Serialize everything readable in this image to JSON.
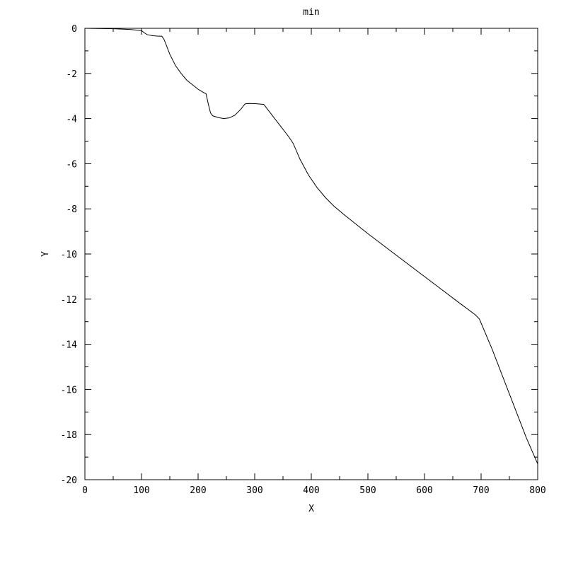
{
  "chart_data": {
    "type": "line",
    "title": "min",
    "xlabel": "X",
    "ylabel": "Y",
    "xlim": [
      0,
      800
    ],
    "ylim": [
      -20,
      0
    ],
    "grid": false,
    "x_ticks": [
      0,
      100,
      200,
      300,
      400,
      500,
      600,
      700,
      800
    ],
    "x_tick_labels": [
      "0",
      "100",
      "200",
      "300",
      "400",
      "500",
      "600",
      "700",
      "800"
    ],
    "y_ticks": [
      0,
      -2,
      -4,
      -6,
      -8,
      -10,
      -12,
      -14,
      -16,
      -18,
      -20
    ],
    "y_tick_labels": [
      "0",
      "-2",
      "-4",
      "-6",
      "-8",
      "-10",
      "-12",
      "-14",
      "-16",
      "-18",
      "-20"
    ],
    "x_minor_step": 50,
    "y_minor_step": 1,
    "series": [
      {
        "color": "#000000",
        "points": [
          [
            0,
            0.0
          ],
          [
            50,
            -0.02
          ],
          [
            80,
            -0.05
          ],
          [
            100,
            -0.1
          ],
          [
            105,
            -0.2
          ],
          [
            110,
            -0.28
          ],
          [
            120,
            -0.33
          ],
          [
            130,
            -0.35
          ],
          [
            136,
            -0.35
          ],
          [
            140,
            -0.5
          ],
          [
            150,
            -1.15
          ],
          [
            160,
            -1.65
          ],
          [
            170,
            -2.0
          ],
          [
            180,
            -2.3
          ],
          [
            190,
            -2.5
          ],
          [
            200,
            -2.7
          ],
          [
            210,
            -2.85
          ],
          [
            214,
            -2.9
          ],
          [
            218,
            -3.35
          ],
          [
            222,
            -3.75
          ],
          [
            226,
            -3.88
          ],
          [
            235,
            -3.95
          ],
          [
            245,
            -4.0
          ],
          [
            255,
            -3.97
          ],
          [
            265,
            -3.85
          ],
          [
            275,
            -3.6
          ],
          [
            283,
            -3.35
          ],
          [
            290,
            -3.33
          ],
          [
            300,
            -3.34
          ],
          [
            316,
            -3.37
          ],
          [
            320,
            -3.5
          ],
          [
            340,
            -4.15
          ],
          [
            360,
            -4.8
          ],
          [
            368,
            -5.1
          ],
          [
            380,
            -5.8
          ],
          [
            395,
            -6.5
          ],
          [
            410,
            -7.05
          ],
          [
            425,
            -7.5
          ],
          [
            440,
            -7.88
          ],
          [
            460,
            -8.3
          ],
          [
            480,
            -8.7
          ],
          [
            500,
            -9.1
          ],
          [
            550,
            -10.05
          ],
          [
            600,
            -11.0
          ],
          [
            650,
            -11.95
          ],
          [
            690,
            -12.7
          ],
          [
            697,
            -12.88
          ],
          [
            720,
            -14.25
          ],
          [
            750,
            -16.2
          ],
          [
            780,
            -18.15
          ],
          [
            800,
            -19.3
          ]
        ]
      }
    ]
  }
}
